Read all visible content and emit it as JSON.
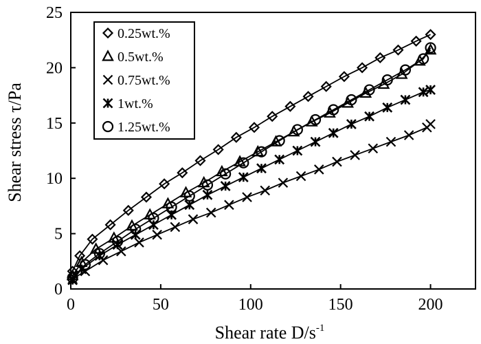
{
  "chart_data": {
    "type": "scatter",
    "xlabel": "Shear rate D/s",
    "xlabel_superscript": "-1",
    "ylabel": "Shear stress τ/Pa",
    "xlim": [
      0,
      225
    ],
    "ylim": [
      0,
      25
    ],
    "xticks": [
      0,
      50,
      100,
      150,
      200
    ],
    "yticks": [
      0,
      5,
      10,
      15,
      20,
      25
    ],
    "grid": false,
    "legend_position": "top-left",
    "series": [
      {
        "name": "0.25wt.%",
        "marker": "diamond",
        "x": [
          1,
          5,
          12,
          22,
          32,
          42,
          52,
          62,
          72,
          82,
          92,
          102,
          112,
          122,
          132,
          142,
          152,
          162,
          172,
          182,
          192,
          200
        ],
        "y": [
          1.6,
          3.0,
          4.5,
          5.8,
          7.1,
          8.3,
          9.5,
          10.5,
          11.6,
          12.6,
          13.7,
          14.6,
          15.6,
          16.5,
          17.4,
          18.3,
          19.2,
          20.0,
          20.9,
          21.6,
          22.4,
          23.0
        ]
      },
      {
        "name": "0.5wt.%",
        "marker": "triangle",
        "x": [
          1,
          6,
          14,
          24,
          34,
          44,
          54,
          64,
          74,
          84,
          94,
          104,
          114,
          124,
          134,
          144,
          154,
          164,
          174,
          184,
          194,
          200
        ],
        "y": [
          1.2,
          2.4,
          3.6,
          4.6,
          5.7,
          6.7,
          7.7,
          8.7,
          9.6,
          10.6,
          11.5,
          12.4,
          13.3,
          14.2,
          15.1,
          15.9,
          16.8,
          17.7,
          18.5,
          19.4,
          20.6,
          21.6
        ]
      },
      {
        "name": "0.75wt.%",
        "marker": "cross",
        "x": [
          1,
          8,
          18,
          28,
          38,
          48,
          58,
          68,
          78,
          88,
          98,
          108,
          118,
          128,
          138,
          148,
          158,
          168,
          178,
          188,
          198,
          200
        ],
        "y": [
          0.9,
          1.6,
          2.6,
          3.4,
          4.2,
          4.9,
          5.6,
          6.3,
          6.9,
          7.6,
          8.3,
          8.9,
          9.6,
          10.2,
          10.8,
          11.5,
          12.1,
          12.7,
          13.3,
          13.9,
          14.6,
          14.9
        ]
      },
      {
        "name": "1wt.%",
        "marker": "asterisk",
        "x": [
          1,
          6,
          16,
          26,
          36,
          46,
          56,
          66,
          76,
          86,
          96,
          106,
          116,
          126,
          136,
          146,
          156,
          166,
          176,
          186,
          196,
          200
        ],
        "y": [
          0.8,
          1.8,
          3.0,
          4.0,
          4.9,
          5.8,
          6.7,
          7.6,
          8.5,
          9.3,
          10.1,
          10.9,
          11.7,
          12.5,
          13.3,
          14.1,
          14.9,
          15.6,
          16.4,
          17.1,
          17.8,
          18.0
        ]
      },
      {
        "name": "1.25wt.%",
        "marker": "circle",
        "x": [
          1,
          8,
          16,
          26,
          36,
          46,
          56,
          66,
          76,
          86,
          96,
          106,
          116,
          126,
          136,
          146,
          156,
          166,
          176,
          186,
          196,
          200
        ],
        "y": [
          1.0,
          2.2,
          3.2,
          4.3,
          5.4,
          6.4,
          7.4,
          8.4,
          9.4,
          10.4,
          11.4,
          12.4,
          13.4,
          14.4,
          15.3,
          16.2,
          17.1,
          18.0,
          18.9,
          19.8,
          20.8,
          21.8
        ]
      }
    ]
  }
}
